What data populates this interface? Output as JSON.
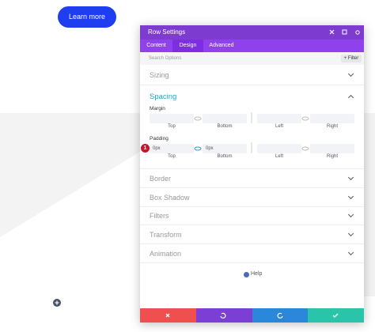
{
  "page": {
    "button": "Learn more"
  },
  "panel": {
    "title": "Row Settings",
    "tabs": [
      "Content",
      "Design",
      "Advanced"
    ],
    "active_tab": "Design",
    "search_placeholder": "Search Options",
    "filter": "+ Filter",
    "sizing": "Sizing",
    "spacing": "Spacing",
    "margin": {
      "label": "Margin",
      "sides": [
        "Top",
        "Bottom",
        "Left",
        "Right"
      ]
    },
    "padding": {
      "label": "Padding",
      "values": [
        "0px",
        "0px"
      ],
      "sides": [
        "Top",
        "Bottom",
        "Left",
        "Right"
      ]
    },
    "badge": "1",
    "sections": [
      "Border",
      "Box Shadow",
      "Filters",
      "Transform",
      "Animation"
    ],
    "help": "Help"
  }
}
